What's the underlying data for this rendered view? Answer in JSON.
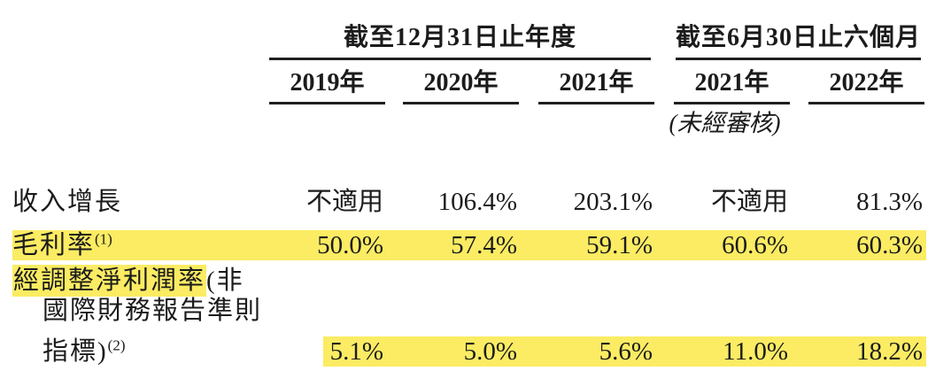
{
  "table": {
    "highlight_color": "#fbec63",
    "column_groups": [
      {
        "label": "截至12月31日止年度",
        "columns": [
          "2019年",
          "2020年",
          "2021年"
        ]
      },
      {
        "label": "截至6月30日止六個月",
        "columns": [
          "2021年",
          "2022年"
        ],
        "note": "(未經審核)"
      }
    ],
    "rows": [
      {
        "label": "收入增長",
        "values": [
          "不適用",
          "106.4%",
          "203.1%",
          "不適用",
          "81.3%"
        ]
      },
      {
        "label": "毛利率",
        "footnote": "(1)",
        "values": [
          "50.0%",
          "57.4%",
          "59.1%",
          "60.6%",
          "60.3%"
        ]
      },
      {
        "label_line1_highlighted": "經調整淨利潤率",
        "label_line1_rest": "(非",
        "label_line2": "國際財務報告準則",
        "label_line3": "指標)",
        "footnote": "(2)",
        "values": [
          "5.1%",
          "5.0%",
          "5.6%",
          "11.0%",
          "18.2%"
        ]
      }
    ]
  }
}
